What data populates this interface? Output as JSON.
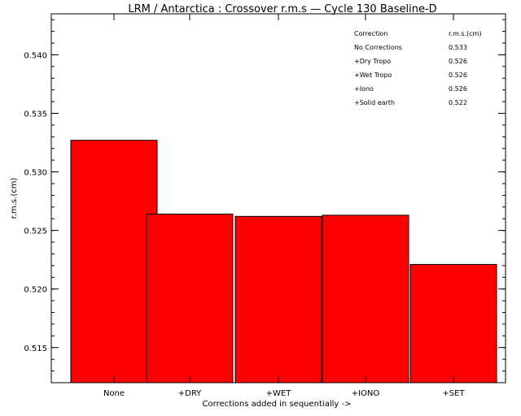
{
  "chart_data": {
    "type": "bar",
    "title": "LRM / Antarctica : Crossover r.m.s — Cycle 130 Baseline-D",
    "xlabel": "Corrections added in sequentially ->",
    "ylabel": "r.m.s.(cm)",
    "categories": [
      "None",
      "+DRY",
      "+WET",
      "+IONO",
      "+SET"
    ],
    "values": [
      0.5327,
      0.5264,
      0.5262,
      0.5263,
      0.5221
    ],
    "ylim": [
      0.512,
      0.5435
    ],
    "yticks": [
      0.515,
      0.52,
      0.525,
      0.53,
      0.535,
      0.54
    ],
    "ytick_labels": [
      "0.515",
      "0.520",
      "0.525",
      "0.530",
      "0.535",
      "0.540"
    ],
    "bar_color": "#ff0000",
    "grid": false,
    "legend": {
      "placement": "top-right",
      "header": [
        "Correction",
        "r.m.s.(cm)"
      ],
      "rows": [
        [
          "No Corrections",
          "0.533"
        ],
        [
          "+Dry Tropo",
          "0.526"
        ],
        [
          "+Wet Tropo",
          "0.526"
        ],
        [
          "+Iono",
          "0.526"
        ],
        [
          "+Solid earth",
          "0.522"
        ]
      ]
    }
  }
}
